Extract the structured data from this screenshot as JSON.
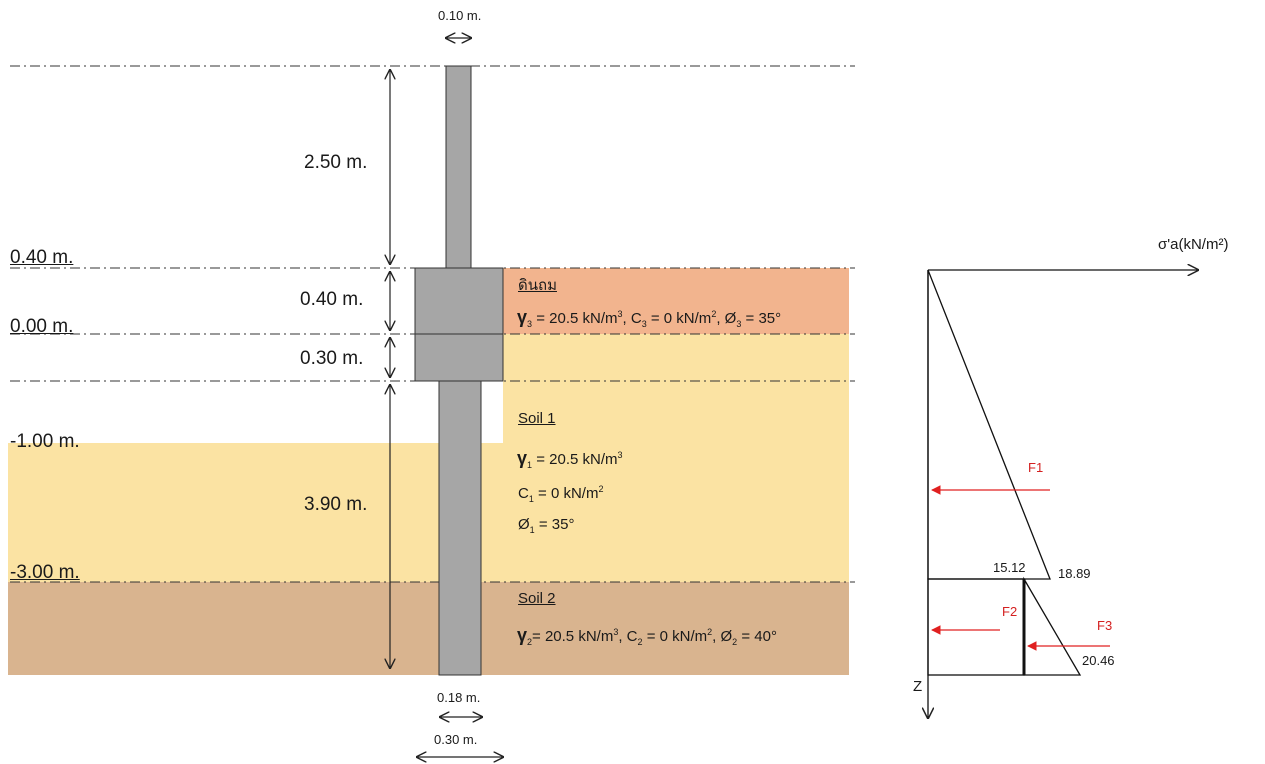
{
  "dims": {
    "top_width": "0.10 m.",
    "upper_height": "2.50 m.",
    "cap_upper": "0.40 m.",
    "cap_lower": "0.30 m.",
    "pile_depth": "3.90 m.",
    "pile_width": "0.18 m.",
    "cap_width": "0.30 m."
  },
  "elevations": [
    "0.40 m.",
    "0.00 m.",
    "-1.00 m.",
    "-3.00 m."
  ],
  "soil_fill": {
    "title": "ดินถม",
    "gamma": "= 20.5 kN/m",
    "gamma_sub": "3",
    "c": ", C",
    "c_sub": "3",
    "c_val": "= 0 kN/m",
    "phi": ", Ø",
    "phi_sub": "3",
    "phi_val": "= 35°"
  },
  "soil_1": {
    "title": "Soil 1",
    "gamma_sub": "1",
    "gamma_val": "= 20.5 kN/m",
    "c": "C",
    "c_sub": "1",
    "c_val": "= 0 kN/m",
    "phi": "Ø",
    "phi_sub": "1",
    "phi_val": "= 35°"
  },
  "soil_2": {
    "title": "Soil 2",
    "gamma_sub": "2",
    "gamma_val": "= 20.5 kN/m",
    "c": ", C",
    "c_sub": "2",
    "c_val": "= 0 kN/m",
    "phi": ", Ø",
    "phi_sub": "2",
    "phi_val": "= 40°"
  },
  "pressure_diagram": {
    "axis_x": "σ'a(kN/m²)",
    "axis_z": "Z",
    "values": [
      "15.12",
      "18.89",
      "20.46"
    ],
    "forces": [
      "F1",
      "F2",
      "F3"
    ]
  },
  "colors": {
    "fill_layer": "#f2b48e",
    "soil1_layer": "#fbe3a3",
    "soil2_layer": "#d9b48f",
    "pile": "#a6a6a6",
    "force_arrow": "#e02020"
  }
}
